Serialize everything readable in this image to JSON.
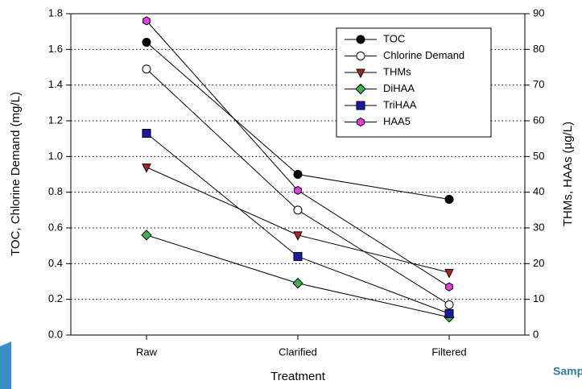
{
  "chart_data": {
    "type": "line",
    "x_label": "Treatment",
    "y_label": "TOC, Chlorine Demand (mg/L)",
    "y2_label": "THMs, HAAs (µg/L)",
    "categories": [
      "Raw",
      "Clarified",
      "Filtered"
    ],
    "ylim": [
      0,
      1.8
    ],
    "yticks": [
      {
        "value": 0,
        "label": "0.0"
      },
      0.2,
      0.4,
      0.6,
      0.8,
      {
        "value": 1,
        "label": "1.0"
      },
      1.2,
      1.4,
      1.6,
      1.8
    ],
    "y2lim": [
      0,
      90
    ],
    "y2ticks": [
      0,
      10,
      20,
      30,
      40,
      50,
      60,
      70,
      80,
      90
    ],
    "grid": true,
    "legend": "upper right",
    "series": [
      {
        "name": "TOC",
        "color": "#000000",
        "marker": "circle",
        "values": [
          1.64,
          0.9,
          0.76
        ]
      },
      {
        "name": "Chlorine Demand",
        "color": "#ffffff",
        "marker": "circle",
        "values": [
          1.49,
          0.7,
          0.17
        ]
      },
      {
        "name": "THMs",
        "color": "#b22222",
        "marker": "triangle-down",
        "axis": "y2",
        "values": [
          47,
          28,
          17.5
        ]
      },
      {
        "name": "DiHAA",
        "color": "#3cb44b",
        "marker": "diamond",
        "axis": "y2",
        "values": [
          28,
          14.5,
          5
        ]
      },
      {
        "name": "TriHAA",
        "color": "#1a1aa6",
        "marker": "square",
        "axis": "y2",
        "values": [
          56.5,
          22,
          6
        ]
      },
      {
        "name": "HAA5",
        "color": "#e040e0",
        "marker": "hexagon",
        "axis": "y2",
        "values": [
          88,
          40.5,
          13.5
        ]
      }
    ]
  },
  "background_text": "Samp"
}
